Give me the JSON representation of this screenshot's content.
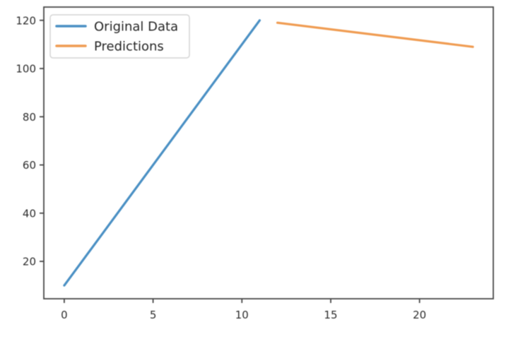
{
  "figure": {
    "background": "#ffffff",
    "frame_color": "#4a4a4a",
    "tick_label_color": "#2d2d2d"
  },
  "chart_data": {
    "type": "line",
    "title": "",
    "xlabel": "",
    "ylabel": "",
    "xlim": [
      -1.15,
      24.15
    ],
    "ylim": [
      4.5,
      125.5
    ],
    "xticks": [
      0,
      5,
      10,
      15,
      20
    ],
    "yticks": [
      20,
      40,
      60,
      80,
      100,
      120
    ],
    "grid": false,
    "legend": {
      "position": "upper left",
      "border_color": "#d5d5d5",
      "background": "#ffffff"
    },
    "series": [
      {
        "name": "Original Data",
        "color": "#4a90c4",
        "x": [
          0,
          11
        ],
        "y": [
          10,
          120
        ]
      },
      {
        "name": "Predictions",
        "color": "#f09c52",
        "x": [
          12,
          23
        ],
        "y": [
          119,
          109
        ]
      }
    ]
  }
}
